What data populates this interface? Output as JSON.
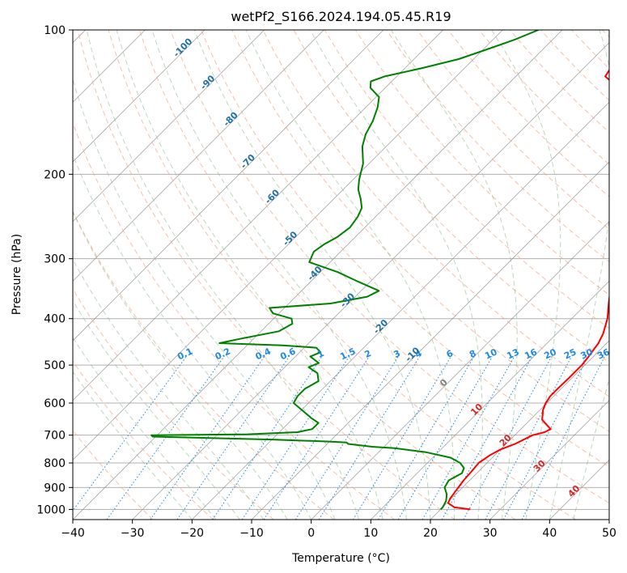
{
  "chart_data": {
    "type": "line",
    "subtype": "skew-t log-p sounding",
    "title": "wetPf2_S166.2024.194.05.45.R19",
    "xlabel": "Temperature (°C)",
    "ylabel": "Pressure (hPa)",
    "xlim": [
      -40,
      50
    ],
    "ylim": [
      1050,
      100
    ],
    "y_scale": "log",
    "grid": true,
    "x_ticks": [
      "−40",
      "−30",
      "−20",
      "−10",
      "0",
      "10",
      "20",
      "30",
      "40",
      "50"
    ],
    "x_tick_values": [
      -40,
      -30,
      -20,
      -10,
      0,
      10,
      20,
      30,
      40,
      50
    ],
    "y_ticks": [
      "100",
      "200",
      "300",
      "400",
      "500",
      "600",
      "700",
      "800",
      "900",
      "1000"
    ],
    "y_tick_values": [
      100,
      200,
      300,
      400,
      500,
      600,
      700,
      800,
      900,
      1000
    ],
    "isotherm_labels": [
      {
        "text": "-100",
        "T": -100,
        "p": 110
      },
      {
        "text": "-90",
        "T": -90,
        "p": 130
      },
      {
        "text": "-80",
        "T": -80,
        "p": 155
      },
      {
        "text": "-70",
        "T": -70,
        "p": 190
      },
      {
        "text": "-60",
        "T": -60,
        "p": 225
      },
      {
        "text": "-50",
        "T": -50,
        "p": 275
      },
      {
        "text": "-40",
        "T": -40,
        "p": 325
      },
      {
        "text": "-30",
        "T": -30,
        "p": 370
      },
      {
        "text": "-20",
        "T": -20,
        "p": 420
      },
      {
        "text": "-10",
        "T": -10,
        "p": 480
      },
      {
        "text": "0",
        "T": 0,
        "p": 550
      },
      {
        "text": "10",
        "T": 10,
        "p": 625
      },
      {
        "text": "20",
        "T": 20,
        "p": 725
      },
      {
        "text": "30",
        "T": 30,
        "p": 820
      },
      {
        "text": "40",
        "T": 40,
        "p": 925
      }
    ],
    "mixing_ratio_labels": [
      "0.1",
      "0.2",
      "0.4",
      "0.6",
      "1",
      "1.5",
      "2",
      "3",
      "4",
      "6",
      "8",
      "10",
      "13",
      "16",
      "20",
      "25",
      "30",
      "36"
    ],
    "mixing_ratio_label_pressure": 480,
    "colors": {
      "temperature": "#ff0000",
      "dewpoint": "#008000",
      "isotherm": "#808080",
      "dry_adiabat": "#f4a582",
      "moist_adiabat": "#8fbc8f",
      "mixing_ratio": "#1e88e5",
      "isotherm_label_cold": "#1f6fa8",
      "isotherm_label_zero": "#808080",
      "isotherm_label_warm": "#d62728"
    },
    "series": [
      {
        "name": "",
        "role": "temperature",
        "points": [
          [
            1000,
            25.0
          ],
          [
            990,
            22.0
          ],
          [
            970,
            20.2
          ],
          [
            950,
            19.8
          ],
          [
            900,
            19.3
          ],
          [
            870,
            19.0
          ],
          [
            830,
            18.8
          ],
          [
            800,
            18.6
          ],
          [
            770,
            19.2
          ],
          [
            750,
            20.0
          ],
          [
            730,
            21.5
          ],
          [
            710,
            22.5
          ],
          [
            700,
            23.0
          ],
          [
            690,
            24.5
          ],
          [
            680,
            25.0
          ],
          [
            670,
            24.0
          ],
          [
            650,
            22.0
          ],
          [
            620,
            20.5
          ],
          [
            600,
            19.8
          ],
          [
            580,
            19.4
          ],
          [
            560,
            19.4
          ],
          [
            530,
            19.5
          ],
          [
            500,
            19.5
          ],
          [
            480,
            19.2
          ],
          [
            450,
            18.6
          ],
          [
            430,
            17.8
          ],
          [
            400,
            16.0
          ],
          [
            370,
            13.5
          ],
          [
            350,
            11.8
          ],
          [
            330,
            10.0
          ],
          [
            300,
            7.5
          ],
          [
            280,
            5.5
          ],
          [
            260,
            3.5
          ],
          [
            240,
            1.5
          ],
          [
            220,
            -0.3
          ],
          [
            200,
            -3.5
          ],
          [
            185,
            -6.5
          ],
          [
            170,
            -10.0
          ],
          [
            155,
            -14.0
          ],
          [
            140,
            -18.5
          ],
          [
            130,
            -22.0
          ],
          [
            125,
            -25.0
          ],
          [
            120,
            -25.5
          ],
          [
            115,
            -24.5
          ],
          [
            110,
            -24.0
          ],
          [
            105,
            -24.5
          ],
          [
            100,
            -25.5
          ]
        ]
      },
      {
        "name": "",
        "role": "dewpoint",
        "points": [
          [
            1000,
            20.0
          ],
          [
            990,
            20.0
          ],
          [
            960,
            19.5
          ],
          [
            930,
            18.5
          ],
          [
            900,
            17.0
          ],
          [
            870,
            16.5
          ],
          [
            840,
            17.5
          ],
          [
            820,
            17.0
          ],
          [
            800,
            15.5
          ],
          [
            780,
            13.0
          ],
          [
            760,
            8.0
          ],
          [
            745,
            2.0
          ],
          [
            740,
            -2.0
          ],
          [
            730,
            -6.5
          ],
          [
            725,
            -7.0
          ],
          [
            722,
            -10.0
          ],
          [
            715,
            -20.0
          ],
          [
            705,
            -40.5
          ],
          [
            700,
            -41.0
          ],
          [
            697,
            -25.0
          ],
          [
            690,
            -17.0
          ],
          [
            680,
            -15.0
          ],
          [
            670,
            -15.0
          ],
          [
            660,
            -15.0
          ],
          [
            645,
            -17.0
          ],
          [
            620,
            -20.0
          ],
          [
            600,
            -22.5
          ],
          [
            580,
            -23.0
          ],
          [
            560,
            -23.0
          ],
          [
            540,
            -22.0
          ],
          [
            520,
            -23.5
          ],
          [
            505,
            -26.0
          ],
          [
            495,
            -25.0
          ],
          [
            480,
            -27.5
          ],
          [
            470,
            -26.5
          ],
          [
            460,
            -28.0
          ],
          [
            455,
            -34.0
          ],
          [
            450,
            -45.0
          ],
          [
            440,
            -42.0
          ],
          [
            425,
            -37.0
          ],
          [
            410,
            -36.0
          ],
          [
            400,
            -37.0
          ],
          [
            390,
            -41.0
          ],
          [
            380,
            -42.5
          ],
          [
            372,
            -33.0
          ],
          [
            360,
            -28.0
          ],
          [
            350,
            -27.0
          ],
          [
            335,
            -32.0
          ],
          [
            320,
            -37.0
          ],
          [
            305,
            -43.5
          ],
          [
            290,
            -44.5
          ],
          [
            280,
            -44.0
          ],
          [
            270,
            -43.0
          ],
          [
            258,
            -42.5
          ],
          [
            245,
            -43.0
          ],
          [
            235,
            -43.8
          ],
          [
            225,
            -45.5
          ],
          [
            215,
            -47.5
          ],
          [
            205,
            -49.0
          ],
          [
            190,
            -51.0
          ],
          [
            175,
            -54.0
          ],
          [
            165,
            -55.5
          ],
          [
            155,
            -56.5
          ],
          [
            145,
            -58.0
          ],
          [
            138,
            -59.5
          ],
          [
            132,
            -62.5
          ],
          [
            128,
            -63.5
          ],
          [
            125,
            -62.0
          ],
          [
            120,
            -57.0
          ],
          [
            115,
            -52.5
          ],
          [
            110,
            -49.5
          ],
          [
            105,
            -46.5
          ],
          [
            100,
            -44.0
          ]
        ]
      }
    ]
  }
}
